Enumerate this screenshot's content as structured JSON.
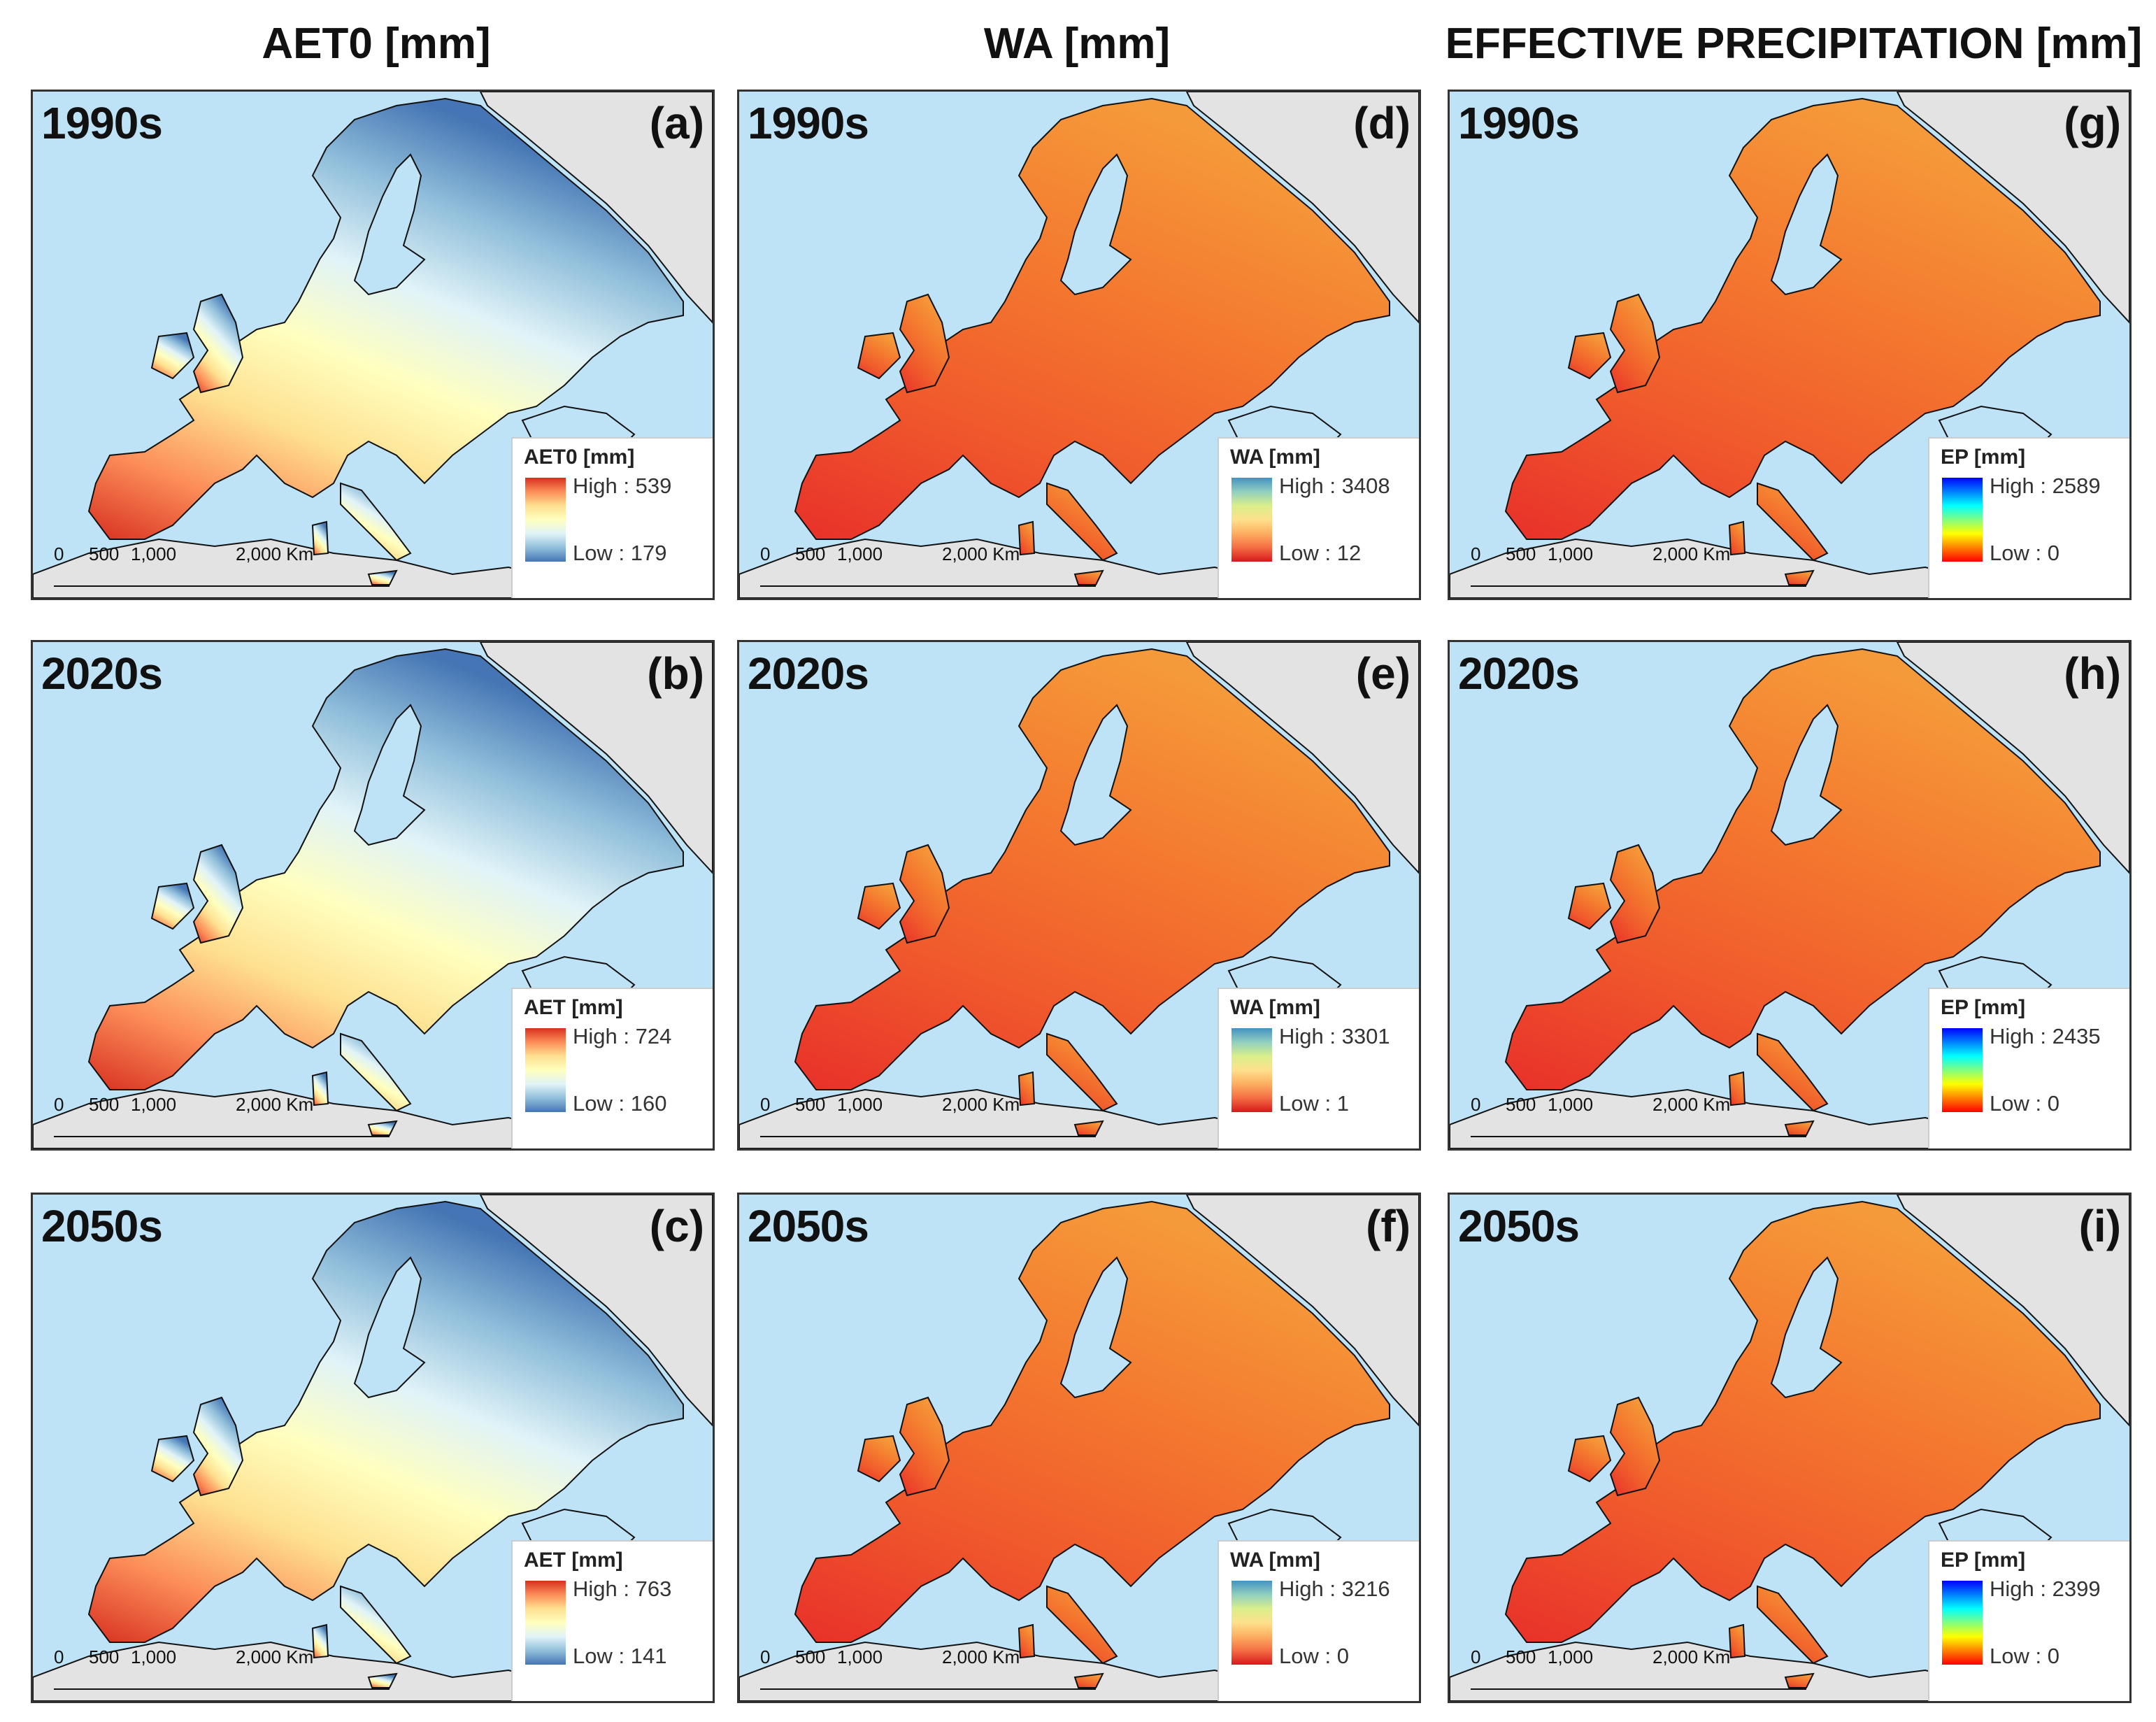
{
  "columns": [
    {
      "title": "AET0 [mm]"
    },
    {
      "title": "WA [mm]"
    },
    {
      "title": "EFFECTIVE PRECIPITATION [mm]"
    }
  ],
  "scale_bar": {
    "zero": "0",
    "t500": "500",
    "t1000": "1,000",
    "t2000": "2,000 Km"
  },
  "colors": {
    "sea": "#bfe3f6",
    "land_outside": "#e3e3e3",
    "border": "#111111"
  },
  "ramps": {
    "aet": [
      "#d7301f",
      "#fc8d59",
      "#fee090",
      "#ffffbf",
      "#e0f3f8",
      "#91bfdb",
      "#4575b4"
    ],
    "wa": [
      "#d7191c",
      "#f46d43",
      "#fdae61",
      "#fee08b",
      "#d9ef8b",
      "#91cfbf",
      "#4393c3"
    ],
    "ep": [
      "#ff0000",
      "#ff8000",
      "#ffff00",
      "#80ff80",
      "#00ffff",
      "#0080ff",
      "#0000ff"
    ]
  },
  "panels": [
    {
      "period": "1990s",
      "label": "(a)",
      "legend": {
        "title": "AET0 [mm]",
        "high": "High : 539",
        "low": "Low : 179"
      },
      "ramp": "aet"
    },
    {
      "period": "1990s",
      "label": "(d)",
      "legend": {
        "title": "WA [mm]",
        "high": "High : 3408",
        "low": "Low : 12"
      },
      "ramp": "wa"
    },
    {
      "period": "1990s",
      "label": "(g)",
      "legend": {
        "title": "EP [mm]",
        "high": "High : 2589",
        "low": "Low : 0"
      },
      "ramp": "ep"
    },
    {
      "period": "2020s",
      "label": "(b)",
      "legend": {
        "title": "AET [mm]",
        "high": "High : 724",
        "low": "Low : 160"
      },
      "ramp": "aet"
    },
    {
      "period": "2020s",
      "label": "(e)",
      "legend": {
        "title": "WA [mm]",
        "high": "High : 3301",
        "low": "Low : 1"
      },
      "ramp": "wa"
    },
    {
      "period": "2020s",
      "label": "(h)",
      "legend": {
        "title": "EP [mm]",
        "high": "High : 2435",
        "low": "Low : 0"
      },
      "ramp": "ep"
    },
    {
      "period": "2050s",
      "label": "(c)",
      "legend": {
        "title": "AET [mm]",
        "high": "High : 763",
        "low": "Low : 141"
      },
      "ramp": "aet"
    },
    {
      "period": "2050s",
      "label": "(f)",
      "legend": {
        "title": "WA [mm]",
        "high": "High : 3216",
        "low": "Low : 0"
      },
      "ramp": "wa"
    },
    {
      "period": "2050s",
      "label": "(i)",
      "legend": {
        "title": "EP [mm]",
        "high": "High : 2399",
        "low": "Low : 0"
      },
      "ramp": "ep"
    }
  ]
}
